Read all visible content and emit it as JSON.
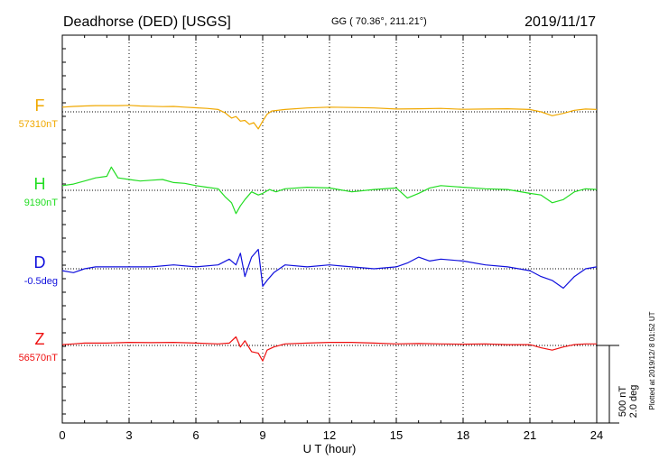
{
  "header": {
    "station": "Deadhorse (DED)  [USGS]",
    "coords": "GG ( 70.36°, 211.21°)",
    "date": "2019/11/17"
  },
  "xaxis": {
    "label": "U T (hour)",
    "ticks": [
      "0",
      "3",
      "6",
      "9",
      "12",
      "15",
      "18",
      "21",
      "24"
    ]
  },
  "scale_bar": {
    "nt": "500 nT",
    "deg": "2.0 deg"
  },
  "footer": {
    "plotted": "Plotted at 2019/12/ 8 01:52 UT"
  },
  "chart_data": {
    "type": "line",
    "x_unit": "hour UT",
    "xlim": [
      0,
      24
    ],
    "grid": true,
    "scale": {
      "nT_per_bar": 500,
      "deg_per_bar": 2.0
    },
    "series": [
      {
        "name": "F",
        "baseline_label": "57310nT",
        "color": "#f0a800",
        "x": [
          0,
          0.5,
          1,
          1.5,
          2,
          2.5,
          3,
          3.5,
          4,
          4.5,
          5,
          5.5,
          6,
          6.5,
          7,
          7.3,
          7.6,
          7.8,
          8,
          8.2,
          8.4,
          8.6,
          8.8,
          9,
          9.2,
          9.4,
          10,
          11,
          12,
          13,
          14,
          15,
          16,
          17,
          18,
          19,
          20,
          21,
          21.5,
          22,
          22.5,
          23,
          23.5,
          24
        ],
        "y": [
          30,
          35,
          38,
          40,
          40,
          40,
          42,
          38,
          36,
          34,
          35,
          30,
          26,
          22,
          15,
          -5,
          -40,
          -30,
          -60,
          -55,
          -80,
          -70,
          -110,
          -60,
          -15,
          5,
          15,
          25,
          30,
          28,
          25,
          18,
          20,
          22,
          16,
          18,
          20,
          15,
          0,
          -25,
          -10,
          10,
          18,
          15
        ]
      },
      {
        "name": "H",
        "baseline_label": "9190nT",
        "color": "#22dd22",
        "x": [
          0,
          0.5,
          1,
          1.5,
          2,
          2.2,
          2.5,
          3,
          3.5,
          4,
          4.5,
          5,
          5.5,
          6,
          6.5,
          7,
          7.3,
          7.6,
          7.8,
          8,
          8.2,
          8.5,
          8.8,
          9,
          9.3,
          9.6,
          10,
          11,
          12,
          13,
          14,
          15,
          15.5,
          16,
          16.5,
          17,
          18,
          19,
          20,
          21,
          21.5,
          22,
          22.5,
          23,
          23.5,
          24
        ],
        "y": [
          30,
          40,
          60,
          80,
          90,
          150,
          80,
          70,
          60,
          65,
          70,
          50,
          45,
          30,
          20,
          10,
          -40,
          -80,
          -150,
          -100,
          -60,
          -10,
          -30,
          -20,
          5,
          -10,
          10,
          20,
          15,
          -10,
          5,
          15,
          -50,
          -20,
          15,
          30,
          20,
          10,
          5,
          -20,
          -30,
          -80,
          -60,
          -10,
          10,
          5
        ]
      },
      {
        "name": "D",
        "baseline_label": "-0.5deg",
        "color": "#1010dd",
        "x": [
          0,
          0.5,
          1,
          1.5,
          2,
          3,
          4,
          5,
          6,
          7,
          7.5,
          7.8,
          8,
          8.2,
          8.5,
          8.8,
          9,
          9.2,
          9.5,
          10,
          11,
          12,
          13,
          14,
          15,
          15.5,
          16,
          16.5,
          17,
          18,
          19,
          20,
          20.5,
          21,
          21.5,
          22,
          22.5,
          23,
          23.5,
          24
        ],
        "y": [
          -0.05,
          -0.1,
          0.0,
          0.05,
          0.05,
          0.05,
          0.05,
          0.1,
          0.05,
          0.1,
          0.25,
          0.1,
          0.4,
          -0.2,
          0.3,
          0.5,
          -0.45,
          -0.3,
          -0.1,
          0.1,
          0.05,
          0.1,
          0.05,
          0.0,
          0.05,
          0.15,
          0.3,
          0.2,
          0.25,
          0.2,
          0.1,
          0.05,
          0.0,
          -0.05,
          -0.2,
          -0.3,
          -0.5,
          -0.2,
          0.0,
          0.05
        ]
      },
      {
        "name": "Z",
        "baseline_label": "56570nT",
        "color": "#ee1010",
        "x": [
          0,
          0.5,
          1,
          2,
          3,
          4,
          5,
          6,
          7,
          7.5,
          7.8,
          8,
          8.2,
          8.5,
          8.8,
          9,
          9.2,
          9.5,
          10,
          11,
          12,
          13,
          14,
          15,
          16,
          17,
          18,
          19,
          20,
          21,
          21.5,
          22,
          22.5,
          23,
          23.5,
          24
        ],
        "y": [
          5,
          10,
          15,
          15,
          20,
          18,
          20,
          15,
          10,
          15,
          55,
          -10,
          30,
          -40,
          -50,
          -100,
          -30,
          -10,
          10,
          15,
          20,
          20,
          15,
          10,
          12,
          10,
          8,
          10,
          5,
          5,
          -15,
          -30,
          -10,
          5,
          10,
          10
        ]
      }
    ]
  }
}
